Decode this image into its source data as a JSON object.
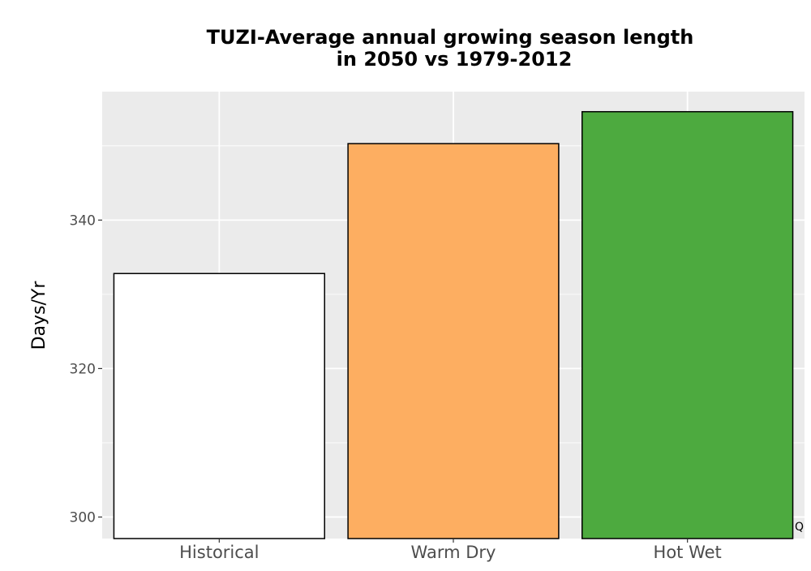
{
  "chart_data": {
    "type": "bar",
    "title_lines": [
      "TUZI-Average annual growing season length",
      "in 2050 vs 1979-2012"
    ],
    "xlabel": "",
    "ylabel": "Days/Yr",
    "categories": [
      "Historical",
      "Warm Dry",
      "Hot Wet"
    ],
    "values": [
      332.8,
      350.3,
      354.6
    ],
    "colors": [
      "#ffffff",
      "#fdae61",
      "#4daa3f"
    ],
    "ylim": [
      297.1,
      357.3
    ],
    "yticks": [
      300,
      320,
      340
    ],
    "grid": true,
    "legend": "none",
    "panel_background": "#ebebeb",
    "gridline_color": "#ffffff",
    "bar_outline_color": "#000000"
  },
  "corner_mark": "Q"
}
